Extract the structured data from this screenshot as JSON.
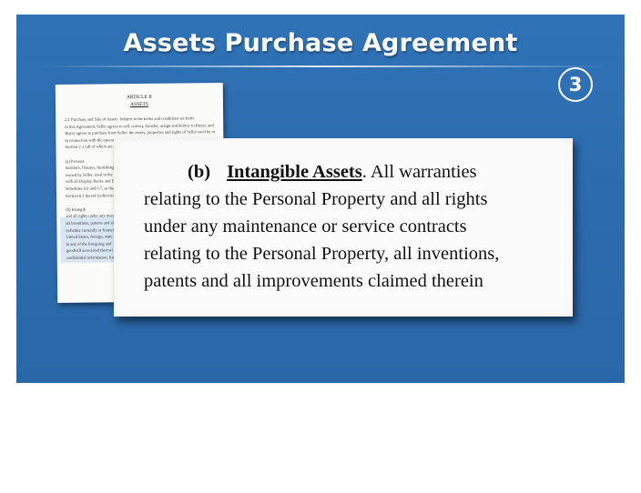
{
  "slide": {
    "title": "Assets Purchase Agreement",
    "step_number": "3"
  },
  "document": {
    "article": "ARTICLE II",
    "heading": "ASSETS",
    "lines": [
      "2.1    Purchase and Sale of Assets. Subject to the terms and conditions set forth",
      "in this Agreement, Seller agrees to sell, convey, transfer, assign and deliver to Buyer, and",
      "Buyer agrees to purchase from Seller, the assets, properties and rights of Seller used by or",
      "in connection with the operation",
      "Section 2.1 (all of which are col",
      "",
      "(a)    Persona",
      "furniture, fixtures, furnishings,",
      "owned by Seller, used in the o",
      "with all Display Racks and D",
      "Schedules 6.6 and 6.7, as the",
      "Section 6.1 hereof (collectively",
      "",
      "(b)    Intangib",
      "and all rights under any mainte",
      "all inventions, patents and all i",
      "(whether currently or formerly",
      "United States, foreign, state o",
      "to any of the foregoing and",
      "goodwill associated therewi",
      "confidential information, form"
    ]
  },
  "callout": {
    "label": "(b)",
    "heading": "Intangible Assets",
    "lines": [
      ". All warranties",
      "relating to the Personal Property and all rights",
      "under any maintenance or service contracts",
      "relating to the Personal Property, all inventions,",
      "patents and all improvements claimed therein"
    ]
  },
  "colors": {
    "slide_background": "#2c6bad",
    "title_text": "#ffffff",
    "callout_background": "#fbfbfb"
  }
}
